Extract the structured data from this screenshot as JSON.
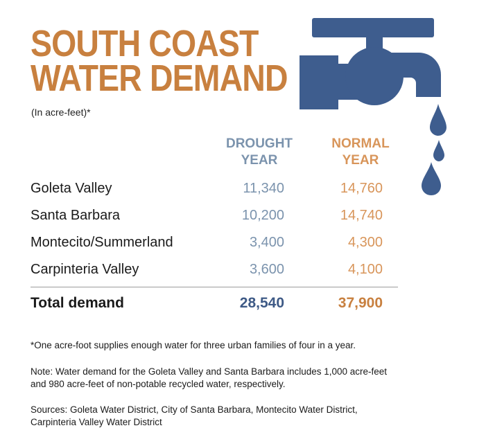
{
  "title": {
    "line1": "SOUTH COAST",
    "line2": "WATER DEMAND"
  },
  "subtitle": "(In acre-feet)*",
  "icon": "water-faucet-icon",
  "colors": {
    "accent_orange": "#c8803f",
    "drought_blue": "#7b93ad",
    "normal_orange": "#d8955a",
    "faucet_blue": "#3e5d8e",
    "total_blue": "#3e5a86"
  },
  "columns": {
    "drought": {
      "line1": "DROUGHT",
      "line2": "YEAR"
    },
    "normal": {
      "line1": "NORMAL",
      "line2": "YEAR"
    }
  },
  "rows": [
    {
      "label": "Goleta Valley",
      "drought": "11,340",
      "normal": "14,760"
    },
    {
      "label": "Santa Barbara",
      "drought": "10,200",
      "normal": "14,740"
    },
    {
      "label": "Montecito/Summerland",
      "drought": "3,400",
      "normal": "4,300"
    },
    {
      "label": "Carpinteria Valley",
      "drought": "3,600",
      "normal": "4,100"
    }
  ],
  "total": {
    "label": "Total demand",
    "drought": "28,540",
    "normal": "37,900"
  },
  "footnote": "*One acre-foot supplies enough water for three urban families of four in a year.",
  "note": {
    "line1": "Note: Water demand for the Goleta Valley and Santa Barbara includes 1,000 acre-feet",
    "line2": "and 980 acre-feet of non-potable recycled water, respectively."
  },
  "sources": {
    "line1": "Sources: Goleta Water District, City of Santa Barbara, Montecito Water District,",
    "line2": "Carpinteria Valley Water District"
  }
}
